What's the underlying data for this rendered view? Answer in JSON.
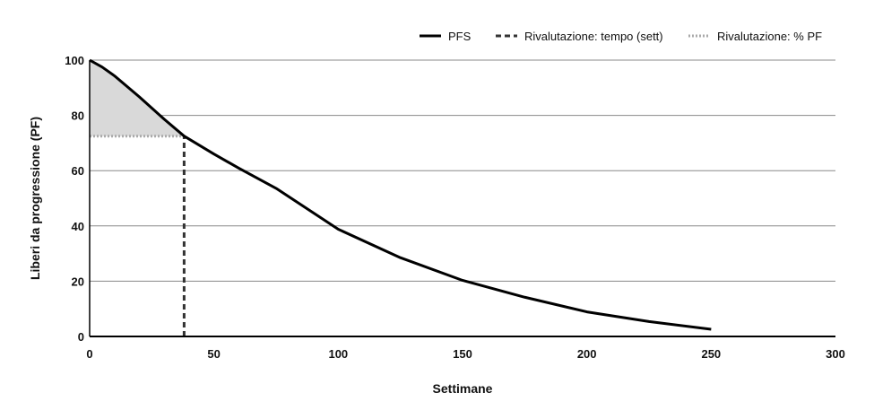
{
  "chart_data": {
    "type": "line",
    "xlabel": "Settimane",
    "ylabel": "Liberi da progressione (PF)",
    "xlim": [
      0,
      300
    ],
    "ylim": [
      0,
      100
    ],
    "xticks": [
      0,
      50,
      100,
      150,
      200,
      250,
      300
    ],
    "yticks": [
      0,
      20,
      40,
      60,
      80,
      100
    ],
    "grid": "horizontal",
    "legend_position": "top-right",
    "legend": [
      {
        "label": "PFS",
        "style": "solid",
        "color": "#000000"
      },
      {
        "label": "Rivalutazione: tempo (sett)",
        "style": "dashed",
        "color": "#333333"
      },
      {
        "label": "Rivalutazione: % PF",
        "style": "dotted",
        "color": "#aaaaaa"
      }
    ],
    "series": [
      {
        "name": "PFS",
        "x": [
          0,
          5,
          10,
          20,
          30,
          38,
          50,
          60,
          75,
          100,
          125,
          150,
          175,
          200,
          225,
          250
        ],
        "y": [
          100,
          97.5,
          94.3,
          86.7,
          78.6,
          72.5,
          66,
          60.9,
          53.6,
          38.8,
          28.5,
          20.3,
          14.2,
          8.9,
          5.4,
          2.6
        ]
      },
      {
        "name": "Rivalutazione: tempo (sett)",
        "x": [
          38,
          38
        ],
        "y": [
          0,
          72.5
        ]
      },
      {
        "name": "Rivalutazione: % PF",
        "x": [
          0,
          38
        ],
        "y": [
          72.5,
          72.5
        ]
      }
    ],
    "shaded_region": {
      "color": "#d9d9d9",
      "x_range": [
        0,
        38
      ],
      "baseline": 72.5
    }
  }
}
